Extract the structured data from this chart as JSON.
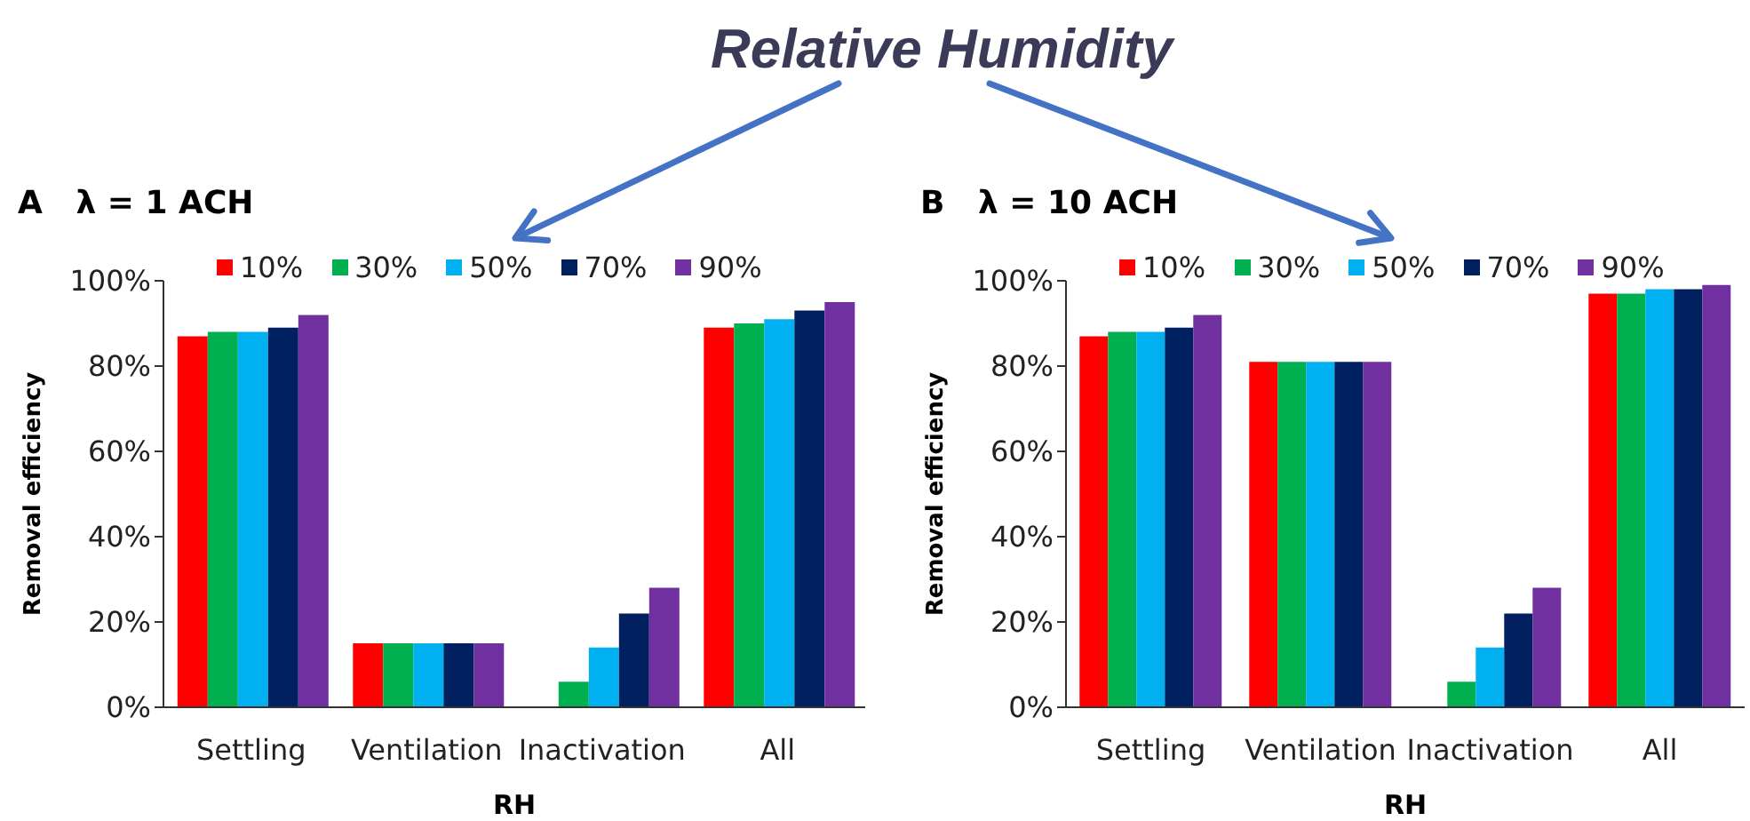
{
  "chart_data": [
    {
      "type": "bar",
      "title": "A   λ = 1 ACH",
      "legend_title": "Relative Humidity",
      "xlabel": "RH",
      "ylabel": "Removal efficiency",
      "categories": [
        "Settling",
        "Ventilation",
        "Inactivation",
        "All"
      ],
      "series": [
        {
          "name": "10%",
          "color": "#ff0000",
          "values": [
            87,
            15,
            0,
            89
          ]
        },
        {
          "name": "30%",
          "color": "#00b050",
          "values": [
            88,
            15,
            6,
            90
          ]
        },
        {
          "name": "50%",
          "color": "#00b0f0",
          "values": [
            88,
            15,
            14,
            91
          ]
        },
        {
          "name": "70%",
          "color": "#002060",
          "values": [
            89,
            15,
            22,
            93
          ]
        },
        {
          "name": "90%",
          "color": "#7030a0",
          "values": [
            92,
            15,
            28,
            95
          ]
        }
      ],
      "ylim": [
        0,
        100
      ],
      "yticks": [
        {
          "value": 0,
          "label": "0%"
        },
        {
          "value": 20,
          "label": "20%"
        },
        {
          "value": 40,
          "label": "40%"
        },
        {
          "value": 60,
          "label": "60%"
        },
        {
          "value": 80,
          "label": "80%"
        },
        {
          "value": 100,
          "label": "100%"
        }
      ],
      "legend": "top"
    },
    {
      "type": "bar",
      "title": "B   λ = 10 ACH",
      "xlabel": "RH",
      "ylabel": "Removal efficiency",
      "categories": [
        "Settling",
        "Ventilation",
        "Inactivation",
        "All"
      ],
      "series": [
        {
          "name": "10%",
          "color": "#ff0000",
          "values": [
            87,
            81,
            0,
            97
          ]
        },
        {
          "name": "30%",
          "color": "#00b050",
          "values": [
            88,
            81,
            6,
            97
          ]
        },
        {
          "name": "50%",
          "color": "#00b0f0",
          "values": [
            88,
            81,
            14,
            98
          ]
        },
        {
          "name": "70%",
          "color": "#002060",
          "values": [
            89,
            81,
            22,
            98
          ]
        },
        {
          "name": "90%",
          "color": "#7030a0",
          "values": [
            92,
            81,
            28,
            99
          ]
        }
      ],
      "ylim": [
        0,
        100
      ],
      "yticks": [
        {
          "value": 0,
          "label": "0%"
        },
        {
          "value": 20,
          "label": "20%"
        },
        {
          "value": 40,
          "label": "40%"
        },
        {
          "value": 60,
          "label": "60%"
        },
        {
          "value": 80,
          "label": "80%"
        },
        {
          "value": 100,
          "label": "100%"
        }
      ],
      "legend": "top"
    }
  ]
}
